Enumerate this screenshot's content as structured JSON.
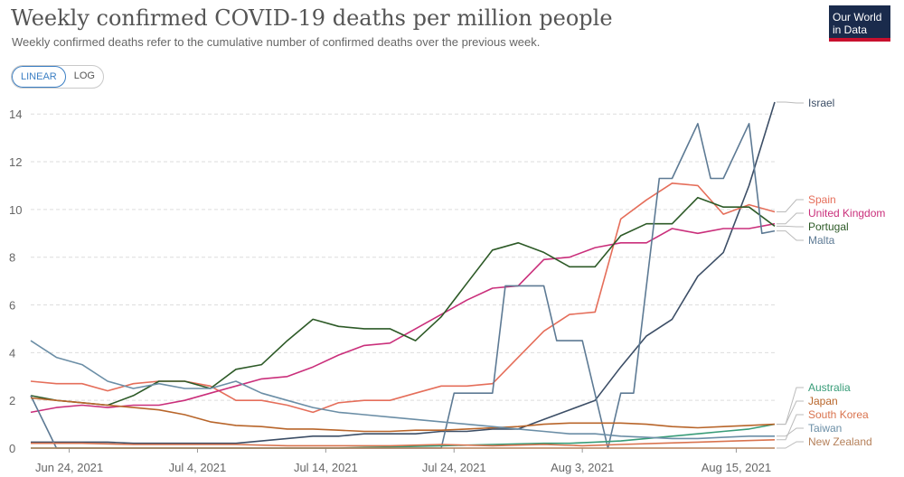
{
  "header": {
    "title": "Weekly confirmed COVID-19 deaths per million people",
    "subtitle": "Weekly confirmed deaths refer to the cumulative number of confirmed deaths over the previous week.",
    "logo_line1": "Our World",
    "logo_line2": "in Data"
  },
  "toggle": {
    "linear": "LINEAR",
    "log": "LOG",
    "selected": "LINEAR"
  },
  "chart_data": {
    "type": "line",
    "xlim": [
      "2021-06-21",
      "2021-08-18"
    ],
    "ylim": [
      0,
      14.5
    ],
    "yticks": [
      0,
      2,
      4,
      6,
      8,
      10,
      12,
      14
    ],
    "xticks": [
      {
        "date": "2021-06-24",
        "label": "Jun 24, 2021"
      },
      {
        "date": "2021-07-04",
        "label": "Jul 4, 2021"
      },
      {
        "date": "2021-07-14",
        "label": "Jul 14, 2021"
      },
      {
        "date": "2021-07-24",
        "label": "Jul 24, 2021"
      },
      {
        "date": "2021-08-03",
        "label": "Aug 3, 2021"
      },
      {
        "date": "2021-08-15",
        "label": "Aug 15, 2021"
      }
    ],
    "grid": "horizontal dashed",
    "series": [
      {
        "name": "Israel",
        "color": "#3c4e66",
        "x": [
          "2021-06-21",
          "2021-06-25",
          "2021-06-27",
          "2021-06-29",
          "2021-07-01",
          "2021-07-05",
          "2021-07-07",
          "2021-07-09",
          "2021-07-11",
          "2021-07-13",
          "2021-07-15",
          "2021-07-17",
          "2021-07-19",
          "2021-07-21",
          "2021-07-23",
          "2021-07-25",
          "2021-07-27",
          "2021-07-29",
          "2021-07-31",
          "2021-08-02",
          "2021-08-04",
          "2021-08-06",
          "2021-08-08",
          "2021-08-10",
          "2021-08-12",
          "2021-08-14",
          "2021-08-16",
          "2021-08-18"
        ],
        "y": [
          0.25,
          0.25,
          0.25,
          0.2,
          0.2,
          0.2,
          0.2,
          0.3,
          0.4,
          0.5,
          0.5,
          0.6,
          0.6,
          0.6,
          0.7,
          0.7,
          0.8,
          0.8,
          1.2,
          1.6,
          2.0,
          3.4,
          4.7,
          5.4,
          7.2,
          8.2,
          11.0,
          14.5
        ]
      },
      {
        "name": "Spain",
        "color": "#e56e5a",
        "x": [
          "2021-06-21",
          "2021-06-23",
          "2021-06-25",
          "2021-06-27",
          "2021-06-29",
          "2021-07-01",
          "2021-07-03",
          "2021-07-05",
          "2021-07-07",
          "2021-07-09",
          "2021-07-11",
          "2021-07-13",
          "2021-07-15",
          "2021-07-17",
          "2021-07-19",
          "2021-07-21",
          "2021-07-23",
          "2021-07-25",
          "2021-07-27",
          "2021-07-29",
          "2021-07-31",
          "2021-08-02",
          "2021-08-04",
          "2021-08-06",
          "2021-08-08",
          "2021-08-10",
          "2021-08-12",
          "2021-08-14",
          "2021-08-16",
          "2021-08-18"
        ],
        "y": [
          2.8,
          2.7,
          2.7,
          2.4,
          2.7,
          2.8,
          2.8,
          2.6,
          2.0,
          2.0,
          1.8,
          1.5,
          1.9,
          2.0,
          2.0,
          2.3,
          2.6,
          2.6,
          2.7,
          3.8,
          4.9,
          5.6,
          5.7,
          9.6,
          10.4,
          11.1,
          11.0,
          9.8,
          10.2,
          9.9
        ]
      },
      {
        "name": "United Kingdom",
        "color": "#ca2f7b",
        "x": [
          "2021-06-21",
          "2021-06-23",
          "2021-06-25",
          "2021-06-27",
          "2021-06-29",
          "2021-07-01",
          "2021-07-03",
          "2021-07-05",
          "2021-07-07",
          "2021-07-09",
          "2021-07-11",
          "2021-07-13",
          "2021-07-15",
          "2021-07-17",
          "2021-07-19",
          "2021-07-21",
          "2021-07-23",
          "2021-07-25",
          "2021-07-27",
          "2021-07-29",
          "2021-07-31",
          "2021-08-02",
          "2021-08-04",
          "2021-08-06",
          "2021-08-08",
          "2021-08-10",
          "2021-08-12",
          "2021-08-14",
          "2021-08-16",
          "2021-08-18"
        ],
        "y": [
          1.5,
          1.7,
          1.8,
          1.7,
          1.8,
          1.8,
          2.0,
          2.3,
          2.6,
          2.9,
          3.0,
          3.4,
          3.9,
          4.3,
          4.4,
          5.0,
          5.6,
          6.2,
          6.7,
          6.8,
          7.9,
          8.0,
          8.4,
          8.6,
          8.6,
          9.2,
          9.0,
          9.2,
          9.2,
          9.4
        ]
      },
      {
        "name": "Portugal",
        "color": "#2d5a27",
        "x": [
          "2021-06-21",
          "2021-06-23",
          "2021-06-25",
          "2021-06-27",
          "2021-06-29",
          "2021-07-01",
          "2021-07-03",
          "2021-07-05",
          "2021-07-07",
          "2021-07-09",
          "2021-07-11",
          "2021-07-13",
          "2021-07-15",
          "2021-07-17",
          "2021-07-19",
          "2021-07-21",
          "2021-07-23",
          "2021-07-25",
          "2021-07-27",
          "2021-07-29",
          "2021-07-31",
          "2021-08-02",
          "2021-08-04",
          "2021-08-06",
          "2021-08-08",
          "2021-08-10",
          "2021-08-12",
          "2021-08-14",
          "2021-08-16",
          "2021-08-18"
        ],
        "y": [
          2.2,
          2.0,
          1.9,
          1.8,
          2.2,
          2.8,
          2.8,
          2.5,
          3.3,
          3.5,
          4.5,
          5.4,
          5.1,
          5.0,
          5.0,
          4.5,
          5.5,
          6.9,
          8.3,
          8.6,
          8.2,
          7.6,
          7.6,
          8.9,
          9.4,
          9.4,
          10.5,
          10.1,
          10.1,
          9.3
        ]
      },
      {
        "name": "Malta",
        "color": "#5d7a94",
        "x": [
          "2021-06-21",
          "2021-06-23",
          "2021-06-25",
          "2021-06-27",
          "2021-06-29",
          "2021-07-01",
          "2021-07-03",
          "2021-07-05",
          "2021-07-07",
          "2021-07-09",
          "2021-07-11",
          "2021-07-13",
          "2021-07-15",
          "2021-07-17",
          "2021-07-19",
          "2021-07-21",
          "2021-07-23",
          "2021-07-24",
          "2021-07-27",
          "2021-07-28",
          "2021-07-31",
          "2021-08-01",
          "2021-08-02",
          "2021-08-03",
          "2021-08-05",
          "2021-08-06",
          "2021-08-07",
          "2021-08-09",
          "2021-08-10",
          "2021-08-12",
          "2021-08-13",
          "2021-08-14",
          "2021-08-16",
          "2021-08-17",
          "2021-08-18"
        ],
        "y": [
          2.2,
          0,
          0,
          0,
          0,
          0,
          0,
          0,
          0,
          0,
          0,
          0,
          0,
          0,
          0,
          0,
          0,
          2.3,
          2.3,
          6.8,
          6.8,
          4.5,
          4.5,
          4.5,
          0,
          2.3,
          2.3,
          11.3,
          11.3,
          13.6,
          11.3,
          11.3,
          13.6,
          9.0,
          9.1
        ]
      },
      {
        "name": "Australia",
        "color": "#389c78",
        "x": [
          "2021-06-21",
          "2021-06-25",
          "2021-06-29",
          "2021-07-03",
          "2021-07-07",
          "2021-07-11",
          "2021-07-15",
          "2021-07-19",
          "2021-07-23",
          "2021-07-27",
          "2021-07-31",
          "2021-08-02",
          "2021-08-04",
          "2021-08-06",
          "2021-08-08",
          "2021-08-10",
          "2021-08-12",
          "2021-08-14",
          "2021-08-16",
          "2021-08-18"
        ],
        "y": [
          0,
          0,
          0,
          0,
          0,
          0,
          0,
          0.05,
          0.1,
          0.15,
          0.2,
          0.2,
          0.25,
          0.3,
          0.4,
          0.5,
          0.6,
          0.7,
          0.8,
          1.0
        ]
      },
      {
        "name": "Japan",
        "color": "#b8652a",
        "x": [
          "2021-06-21",
          "2021-06-23",
          "2021-06-25",
          "2021-06-27",
          "2021-06-29",
          "2021-07-01",
          "2021-07-03",
          "2021-07-05",
          "2021-07-07",
          "2021-07-09",
          "2021-07-11",
          "2021-07-13",
          "2021-07-15",
          "2021-07-17",
          "2021-07-19",
          "2021-07-21",
          "2021-07-23",
          "2021-07-25",
          "2021-07-27",
          "2021-07-29",
          "2021-07-31",
          "2021-08-02",
          "2021-08-04",
          "2021-08-06",
          "2021-08-08",
          "2021-08-10",
          "2021-08-12",
          "2021-08-14",
          "2021-08-16",
          "2021-08-18"
        ],
        "y": [
          2.1,
          2.0,
          1.9,
          1.8,
          1.7,
          1.6,
          1.4,
          1.1,
          0.95,
          0.9,
          0.8,
          0.8,
          0.75,
          0.7,
          0.7,
          0.75,
          0.75,
          0.8,
          0.85,
          0.9,
          1.0,
          1.05,
          1.05,
          1.05,
          1.0,
          0.9,
          0.85,
          0.9,
          0.95,
          1.0
        ]
      },
      {
        "name": "South Korea",
        "color": "#d9734e",
        "x": [
          "2021-06-21",
          "2021-06-25",
          "2021-06-29",
          "2021-07-03",
          "2021-07-07",
          "2021-07-11",
          "2021-07-15",
          "2021-07-19",
          "2021-07-23",
          "2021-07-27",
          "2021-07-31",
          "2021-08-03",
          "2021-08-06",
          "2021-08-09",
          "2021-08-12",
          "2021-08-15",
          "2021-08-18"
        ],
        "y": [
          0.2,
          0.2,
          0.15,
          0.15,
          0.15,
          0.1,
          0.1,
          0.1,
          0.15,
          0.1,
          0.15,
          0.1,
          0.15,
          0.2,
          0.25,
          0.3,
          0.35
        ]
      },
      {
        "name": "Taiwan",
        "color": "#6b8ea6",
        "x": [
          "2021-06-21",
          "2021-06-23",
          "2021-06-25",
          "2021-06-27",
          "2021-06-29",
          "2021-07-01",
          "2021-07-03",
          "2021-07-05",
          "2021-07-07",
          "2021-07-09",
          "2021-07-11",
          "2021-07-13",
          "2021-07-15",
          "2021-07-17",
          "2021-07-19",
          "2021-07-21",
          "2021-07-23",
          "2021-07-25",
          "2021-07-27",
          "2021-07-29",
          "2021-07-31",
          "2021-08-02",
          "2021-08-04",
          "2021-08-06",
          "2021-08-08",
          "2021-08-10",
          "2021-08-12",
          "2021-08-14",
          "2021-08-16",
          "2021-08-18"
        ],
        "y": [
          4.5,
          3.8,
          3.5,
          2.8,
          2.5,
          2.7,
          2.5,
          2.5,
          2.8,
          2.3,
          2.0,
          1.7,
          1.5,
          1.4,
          1.3,
          1.2,
          1.1,
          1.0,
          0.9,
          0.8,
          0.7,
          0.6,
          0.6,
          0.5,
          0.45,
          0.4,
          0.4,
          0.45,
          0.5,
          0.5
        ]
      },
      {
        "name": "New Zealand",
        "color": "#b5805a",
        "x": [
          "2021-06-21",
          "2021-08-18"
        ],
        "y": [
          0,
          0
        ]
      }
    ],
    "legend_order": [
      "Israel",
      "Spain",
      "United Kingdom",
      "Portugal",
      "Malta",
      "Australia",
      "Japan",
      "South Korea",
      "Taiwan",
      "New Zealand"
    ],
    "legend_placement": "right, labels connected to line ends"
  }
}
